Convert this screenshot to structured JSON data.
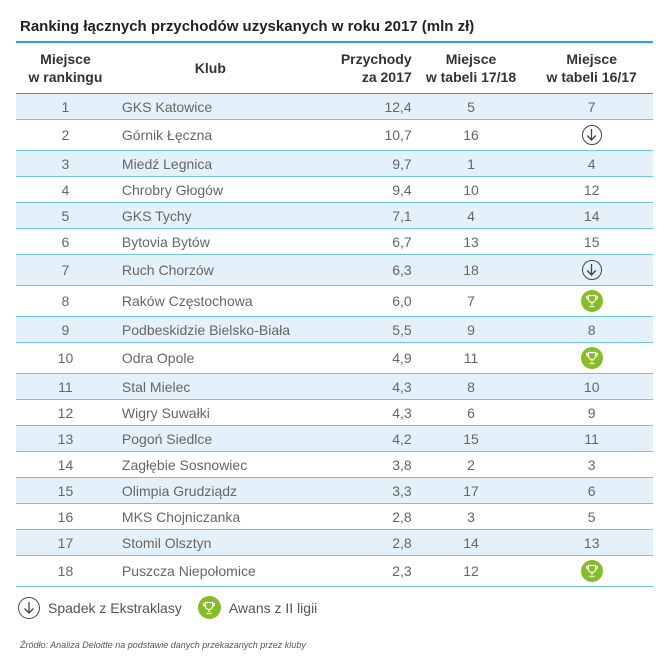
{
  "title": "Ranking łącznych przychodów uzyskanych w roku 2017 (mln zł)",
  "headers": {
    "rank_line1": "Miejsce",
    "rank_line2": "w rankingu",
    "club": "Klub",
    "revenue_line1": "Przychody",
    "revenue_line2": "za 2017",
    "table1718_line1": "Miejsce",
    "table1718_line2": "w tabeli 17/18",
    "table1617_line1": "Miejsce",
    "table1617_line2": "w tabeli 16/17"
  },
  "rows": [
    {
      "rank": "1",
      "club": "GKS Katowice",
      "revenue": "12,4",
      "t1718": "5",
      "t1617": "7"
    },
    {
      "rank": "2",
      "club": "Górnik Łęczna",
      "revenue": "10,7",
      "t1718": "16",
      "t1617": "",
      "icon": "relegated"
    },
    {
      "rank": "3",
      "club": "Miedź Legnica",
      "revenue": "9,7",
      "t1718": "1",
      "t1617": "4"
    },
    {
      "rank": "4",
      "club": "Chrobry Głogów",
      "revenue": "9,4",
      "t1718": "10",
      "t1617": "12"
    },
    {
      "rank": "5",
      "club": "GKS Tychy",
      "revenue": "7,1",
      "t1718": "4",
      "t1617": "14"
    },
    {
      "rank": "6",
      "club": "Bytovia Bytów",
      "revenue": "6,7",
      "t1718": "13",
      "t1617": "15"
    },
    {
      "rank": "7",
      "club": "Ruch Chorzów",
      "revenue": "6,3",
      "t1718": "18",
      "t1617": "",
      "icon": "relegated"
    },
    {
      "rank": "8",
      "club": "Raków Częstochowa",
      "revenue": "6,0",
      "t1718": "7",
      "t1617": "",
      "icon": "promoted"
    },
    {
      "rank": "9",
      "club": "Podbeskidzie Bielsko-Biała",
      "revenue": "5,5",
      "t1718": "9",
      "t1617": "8"
    },
    {
      "rank": "10",
      "club": "Odra Opole",
      "revenue": "4,9",
      "t1718": "11",
      "t1617": "",
      "icon": "promoted"
    },
    {
      "rank": "11",
      "club": "Stal Mielec",
      "revenue": "4,3",
      "t1718": "8",
      "t1617": "10"
    },
    {
      "rank": "12",
      "club": "Wigry Suwałki",
      "revenue": "4,3",
      "t1718": "6",
      "t1617": "9"
    },
    {
      "rank": "13",
      "club": "Pogoń Siedlce",
      "revenue": "4,2",
      "t1718": "15",
      "t1617": "11"
    },
    {
      "rank": "14",
      "club": "Zagłębie Sosnowiec",
      "revenue": "3,8",
      "t1718": "2",
      "t1617": "3"
    },
    {
      "rank": "15",
      "club": "Olimpia Grudziądz",
      "revenue": "3,3",
      "t1718": "17",
      "t1617": "6"
    },
    {
      "rank": "16",
      "club": "MKS Chojniczanka",
      "revenue": "2,8",
      "t1718": "3",
      "t1617": "5"
    },
    {
      "rank": "17",
      "club": "Stomil Olsztyn",
      "revenue": "2,8",
      "t1718": "14",
      "t1617": "13"
    },
    {
      "rank": "18",
      "club": "Puszcza Niepołomice",
      "revenue": "2,3",
      "t1718": "12",
      "t1617": "",
      "icon": "promoted"
    }
  ],
  "legend": {
    "relegated": "Spadek z Ekstraklasy",
    "promoted": "Awans z II ligii"
  },
  "source": "Źródło: Analiza Deloitte na podstawie danych przekazanych przez kluby",
  "colors": {
    "accent": "#1aa7dc",
    "shade": "#e4f1fa",
    "promoted": "#86bc25"
  }
}
